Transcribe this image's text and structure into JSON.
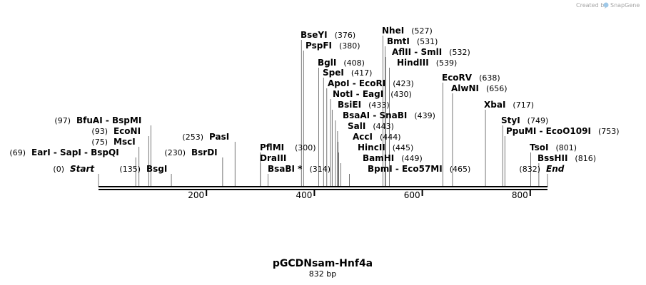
{
  "title": "pGCDNsam-Hnf4a",
  "length_label": "832 bp",
  "sequence_length": 832,
  "credit": {
    "text": "Created by",
    "brand": "SnapGene",
    "color": "#a5a5a5"
  },
  "ruler_ticks": [
    200,
    400,
    600,
    800
  ],
  "sites": [
    {
      "id": "nhei",
      "label": "NheI",
      "pos": 527
    },
    {
      "id": "bmti",
      "label": "BmtI",
      "pos": 531
    },
    {
      "id": "aflii-smli",
      "label": "AflII  -  SmlI",
      "pos": 532
    },
    {
      "id": "hindiii",
      "label": "HindIII",
      "pos": 539
    },
    {
      "id": "bseyi",
      "label": "BseYI",
      "pos": 376
    },
    {
      "id": "pspfi",
      "label": "PspFI",
      "pos": 380
    },
    {
      "id": "bgli",
      "label": "BglI",
      "pos": 408
    },
    {
      "id": "spei",
      "label": "SpeI",
      "pos": 417
    },
    {
      "id": "apoi-ecori",
      "label": "ApoI  -  EcoRI",
      "pos": 423
    },
    {
      "id": "noti-eagi",
      "label": "NotI  -  EagI",
      "pos": 430
    },
    {
      "id": "bsiei",
      "label": "BsiEI",
      "pos": 433
    },
    {
      "id": "bsaai-snabi",
      "label": "BsaAI  -  SnaBI",
      "pos": 439
    },
    {
      "id": "sali",
      "label": "SalI",
      "pos": 443
    },
    {
      "id": "acci",
      "label": "AccI",
      "pos": 444
    },
    {
      "id": "hincii",
      "label": "HincII",
      "pos": 445
    },
    {
      "id": "bamhi",
      "label": "BamHI",
      "pos": 449
    },
    {
      "id": "bpmi-eco57mi",
      "label": "BpmI  -  Eco57MI",
      "pos": 465
    },
    {
      "id": "ecorv",
      "label": "EcoRV",
      "pos": 638
    },
    {
      "id": "alwni",
      "label": "AlwNI",
      "pos": 656
    },
    {
      "id": "xbai",
      "label": "XbaI",
      "pos": 717
    },
    {
      "id": "styi",
      "label": "StyI",
      "pos": 749
    },
    {
      "id": "ppumi-eco0109i",
      "label": "PpuMI  -  EcoO109I",
      "pos": 753
    },
    {
      "id": "tsoi",
      "label": "TsoI",
      "pos": 801
    },
    {
      "id": "bsshii",
      "label": "BssHII",
      "pos": 816
    },
    {
      "id": "end",
      "label": "End",
      "pos": 832
    },
    {
      "id": "bfuai-bspmi",
      "label": "BfuAI  -  BspMI",
      "pos": 97
    },
    {
      "id": "econi",
      "label": "EcoNI",
      "pos": 93
    },
    {
      "id": "msci",
      "label": "MscI",
      "pos": 75
    },
    {
      "id": "eari-sapi-bspqi",
      "label": "EarI  -  SapI  -  BspQI",
      "pos": 69
    },
    {
      "id": "start",
      "label": "Start",
      "pos": 0
    },
    {
      "id": "bsgi",
      "label": "BsgI",
      "pos": 135
    },
    {
      "id": "pasi",
      "label": "PasI",
      "pos": 253
    },
    {
      "id": "bsrdi",
      "label": "BsrDI",
      "pos": 230
    },
    {
      "id": "pflmi",
      "label": "PflMI",
      "pos": 300
    },
    {
      "id": "draiii",
      "label": "DraIII",
      "pos": 300
    },
    {
      "id": "bsabi",
      "label": "BsaBI *",
      "pos": 314
    }
  ]
}
